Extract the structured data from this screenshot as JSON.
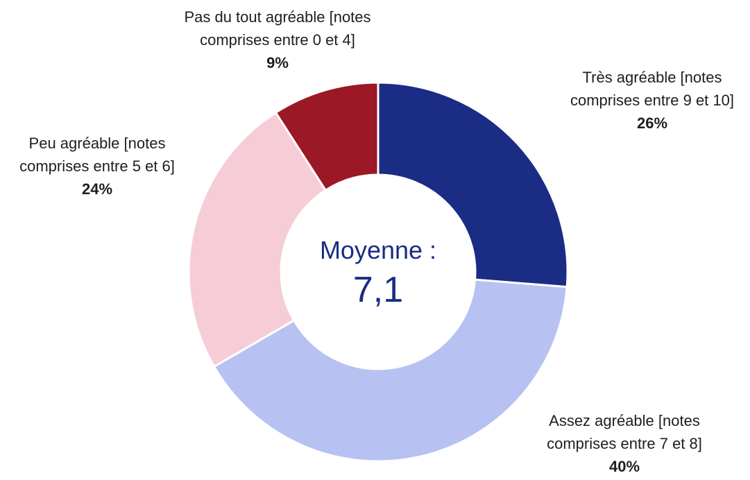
{
  "chart_data": {
    "type": "donut",
    "categories": [
      "Très agréable [notes comprises entre 9 et 10]",
      "Assez agréable [notes comprises entre 7 et 8]",
      "Peu agréable [notes comprises entre 5 et 6]",
      "Pas du tout agréable [notes comprises entre 0 et 4]"
    ],
    "values": [
      26,
      40,
      24,
      9
    ],
    "value_labels": [
      "26%",
      "40%",
      "24%",
      "9%"
    ],
    "colors": [
      "#1a2c84",
      "#b7c2f2",
      "#f6cdd7",
      "#9b1826"
    ],
    "center_label": "Moyenne :",
    "center_value": "7,1"
  }
}
